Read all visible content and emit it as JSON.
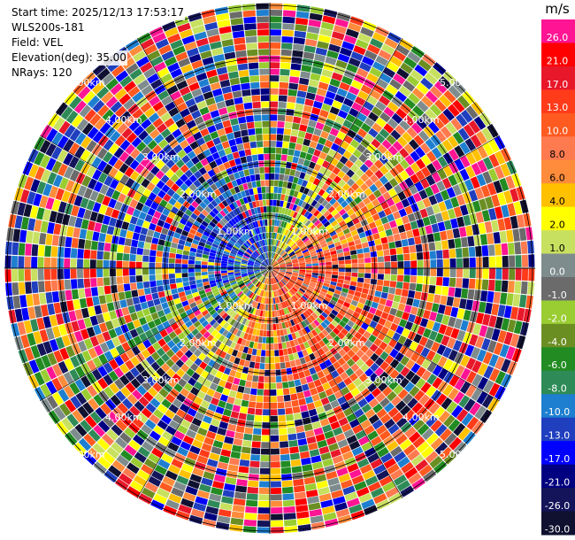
{
  "info": {
    "start_time": "Start time: 2025/12/13 17:53:17",
    "instrument": "WLS200s-181",
    "field": "Field: VEL",
    "elevation": "Elevation(deg): 35.00",
    "nrays": "NRays: 120"
  },
  "ppi": {
    "range_rings": [
      {
        "label": "1.00km",
        "range_km": 1.0
      },
      {
        "label": "2.00km",
        "range_km": 2.0
      },
      {
        "label": "3.00km",
        "range_km": 3.0
      },
      {
        "label": "4.00km",
        "range_km": 4.0
      },
      {
        "label": "5.00km",
        "range_km": 5.0
      }
    ],
    "max_range_km": 5.0,
    "nrays": 120
  },
  "colorbar": {
    "unit": "m/s",
    "ticks": [
      "26.0",
      "21.0",
      "17.0",
      "13.0",
      "10.0",
      "8.0",
      "6.0",
      "4.0",
      "2.0",
      "1.0",
      "0.0",
      "-1.0",
      "-2.0",
      "-4.0",
      "-6.0",
      "-8.0",
      "-10.0",
      "-13.0",
      "-17.0",
      "-21.0",
      "-26.0",
      "-30.0"
    ],
    "colors": [
      "#ff1493",
      "#ff0000",
      "#e8182a",
      "#ff3b1a",
      "#ff5a1f",
      "#ff7a4f",
      "#ff8c3a",
      "#ffc000",
      "#ffff00",
      "#c8e060",
      "#7f8c8d",
      "#6b6b6b",
      "#9acd32",
      "#6b8e23",
      "#228b22",
      "#2e8b57",
      "#1e7fd0",
      "#1f3fbf",
      "#0000ff",
      "#000080",
      "#14145a",
      "#101030"
    ]
  }
}
